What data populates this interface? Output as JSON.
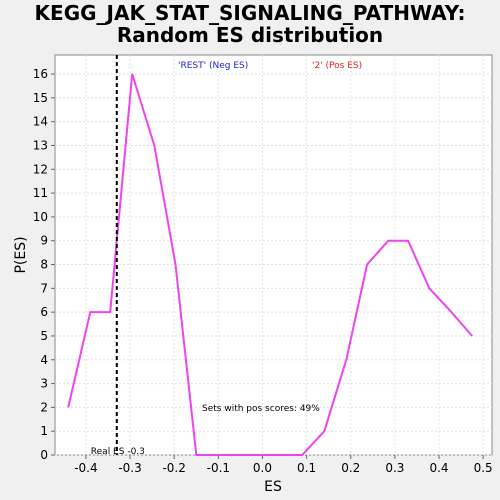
{
  "chart_data": {
    "type": "line",
    "title_line1": "KEGG_JAK_STAT_SIGNALING_PATHWAY:",
    "title_line2": "Random ES distribution",
    "xlabel": "ES",
    "ylabel": "P(ES)",
    "xlim": [
      -0.47,
      0.52
    ],
    "ylim": [
      0,
      16.8
    ],
    "xticks": [
      -0.4,
      -0.3,
      -0.2,
      -0.1,
      0.0,
      0.1,
      0.2,
      0.3,
      0.4,
      0.5
    ],
    "xtick_labels": [
      "-0.4",
      "-0.3",
      "-0.2",
      "-0.1",
      "0.0",
      "0.1",
      "0.2",
      "0.3",
      "0.4",
      "0.5"
    ],
    "yticks": [
      0,
      1,
      2,
      3,
      4,
      5,
      6,
      7,
      8,
      9,
      10,
      11,
      12,
      13,
      14,
      15,
      16
    ],
    "grid": true,
    "series": [
      {
        "color": "#ee44ee",
        "x": [
          -0.44,
          -0.39,
          -0.345,
          -0.295,
          -0.245,
          -0.197,
          -0.15,
          -0.1,
          -0.05,
          0.0,
          0.09,
          0.14,
          0.19,
          0.237,
          0.285,
          0.33,
          0.378,
          0.428,
          0.475
        ],
        "y": [
          2,
          6,
          6,
          16,
          13,
          8,
          0,
          0,
          0,
          0,
          0,
          1,
          4,
          8,
          9,
          9,
          7,
          6,
          5
        ]
      }
    ],
    "real_es": -0.33,
    "real_es_label": "Real ES -0.3",
    "legend_neg": "'REST' (Neg ES)",
    "legend_pos": "'2' (Pos ES)",
    "legend_neg_color": "#2222cc",
    "legend_pos_color": "#dd2222",
    "annotation": "Sets with pos scores: 49%"
  }
}
